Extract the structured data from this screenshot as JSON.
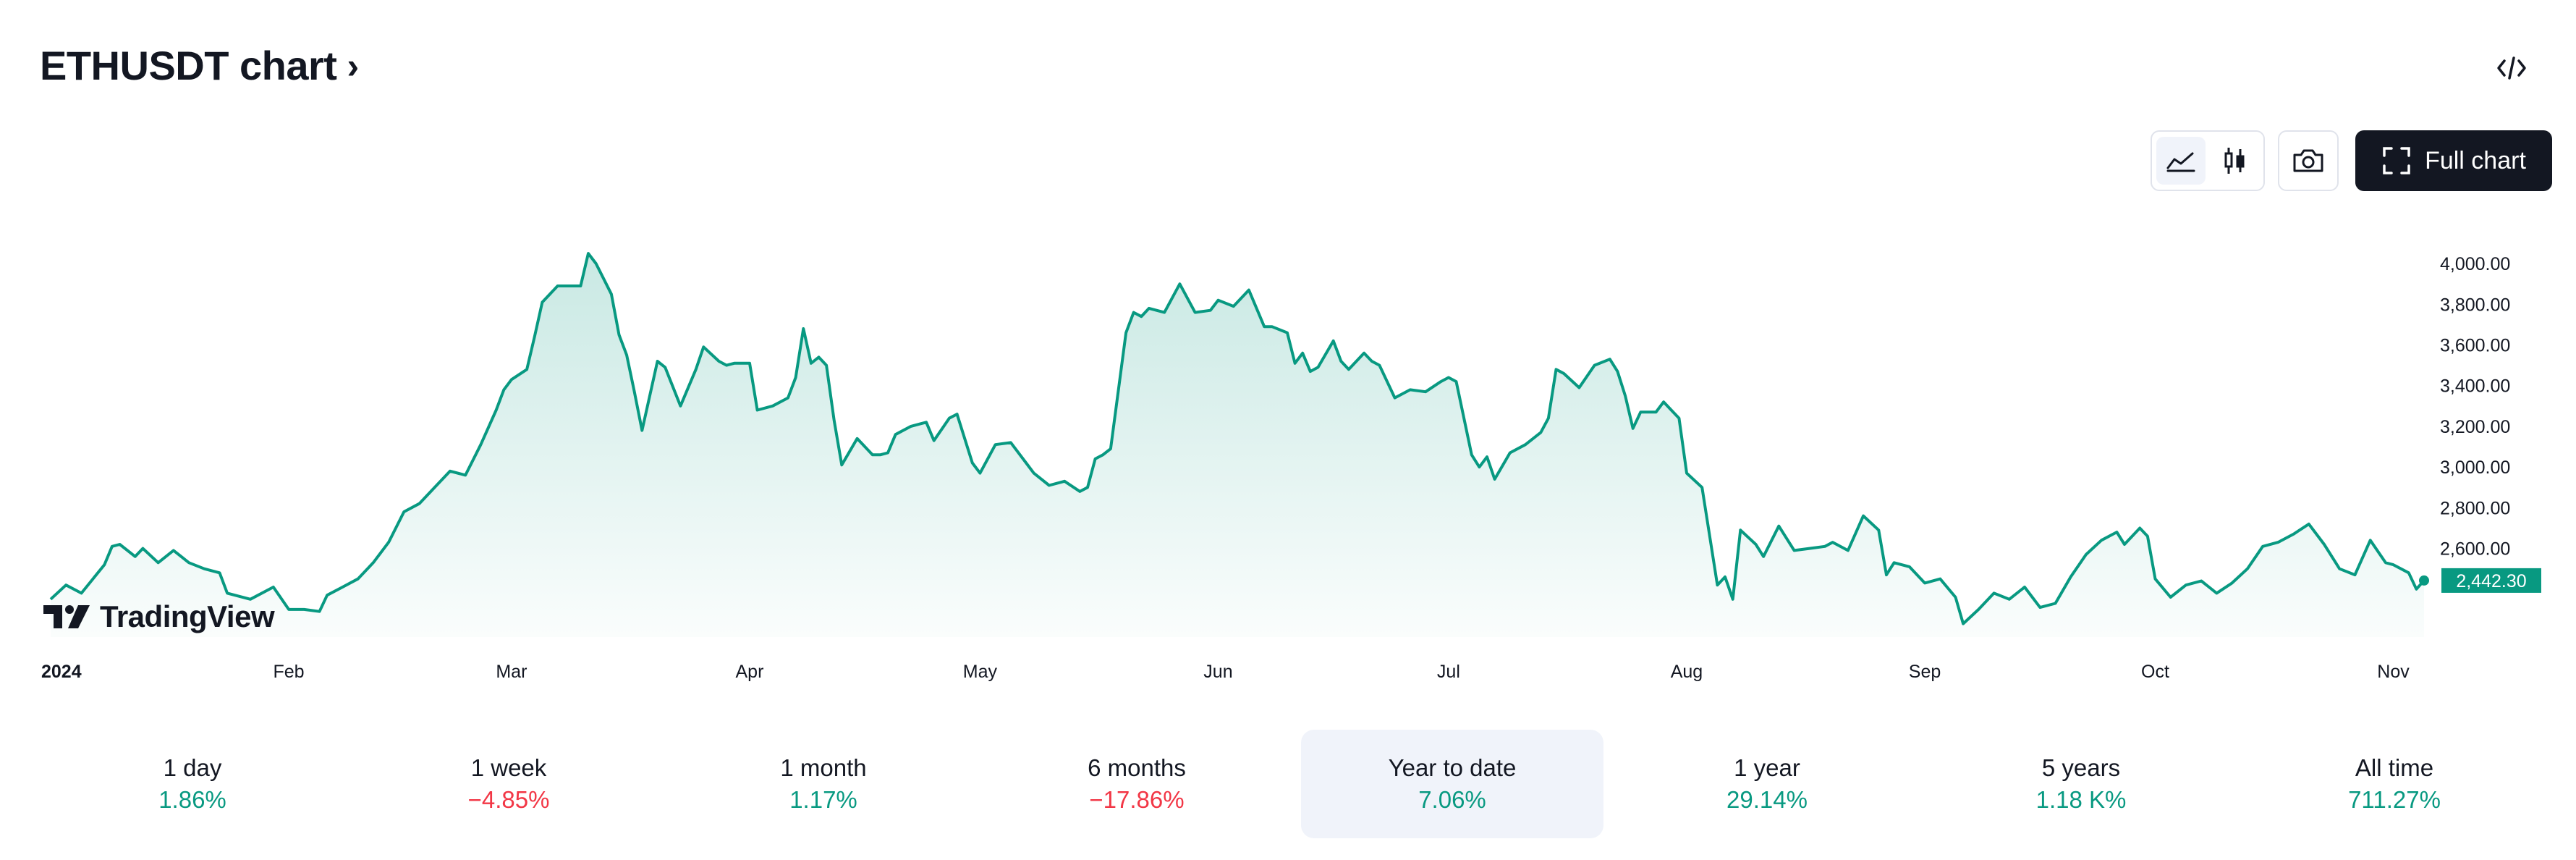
{
  "header": {
    "title": "ETHUSDT chart",
    "chevron": "›"
  },
  "toolbar": {
    "full_chart_label": "Full chart"
  },
  "icons": {
    "embed": "code-embed-icon",
    "area": "area-chart-icon",
    "candles": "candlestick-icon",
    "camera": "camera-icon",
    "fullscreen": "fullscreen-icon"
  },
  "colors": {
    "line": "#089981",
    "price_tag": "#089981",
    "positive": "#089981",
    "negative": "#f23645",
    "active_period_bg": "#f0f3fa"
  },
  "brand": {
    "logo_text": "TradingView"
  },
  "periods": [
    {
      "label": "1 day",
      "value": "1.86%",
      "sign": "pos",
      "active": false
    },
    {
      "label": "1 week",
      "value": "−4.85%",
      "sign": "neg",
      "active": false
    },
    {
      "label": "1 month",
      "value": "1.17%",
      "sign": "pos",
      "active": false
    },
    {
      "label": "6 months",
      "value": "−17.86%",
      "sign": "neg",
      "active": false
    },
    {
      "label": "Year to date",
      "value": "7.06%",
      "sign": "pos",
      "active": true
    },
    {
      "label": "1 year",
      "value": "29.14%",
      "sign": "pos",
      "active": false
    },
    {
      "label": "5 years",
      "value": "1.18 K%",
      "sign": "pos",
      "active": false
    },
    {
      "label": "All time",
      "value": "711.27%",
      "sign": "pos",
      "active": false
    }
  ],
  "chart_data": {
    "type": "area",
    "title": "ETHUSDT chart",
    "xlabel": "",
    "ylabel": "",
    "ylim": [
      2200,
      4100
    ],
    "y_ticks": [
      "2,600.00",
      "2,800.00",
      "3,000.00",
      "3,200.00",
      "3,400.00",
      "3,600.00",
      "3,800.00",
      "4,000.00"
    ],
    "x_ticks": [
      {
        "label": "2024",
        "bold": true,
        "date": "2024-01-01"
      },
      {
        "label": "Feb",
        "date": "2024-02-01"
      },
      {
        "label": "Mar",
        "date": "2024-03-01"
      },
      {
        "label": "Apr",
        "date": "2024-04-01"
      },
      {
        "label": "May",
        "date": "2024-05-01"
      },
      {
        "label": "Jun",
        "date": "2024-06-01"
      },
      {
        "label": "Jul",
        "date": "2024-07-01"
      },
      {
        "label": "Aug",
        "date": "2024-08-01"
      },
      {
        "label": "Sep",
        "date": "2024-09-01"
      },
      {
        "label": "Oct",
        "date": "2024-10-01"
      },
      {
        "label": "Nov",
        "date": "2024-11-01"
      }
    ],
    "last_price": "2,442.30",
    "series": [
      {
        "values": [
          [
            "2024-01-01",
            2350
          ],
          [
            "2024-01-03",
            2420
          ],
          [
            "2024-01-05",
            2380
          ],
          [
            "2024-01-08",
            2520
          ],
          [
            "2024-01-09",
            2610
          ],
          [
            "2024-01-10",
            2620
          ],
          [
            "2024-01-12",
            2560
          ],
          [
            "2024-01-13",
            2600
          ],
          [
            "2024-01-15",
            2530
          ],
          [
            "2024-01-17",
            2590
          ],
          [
            "2024-01-19",
            2530
          ],
          [
            "2024-01-21",
            2500
          ],
          [
            "2024-01-23",
            2480
          ],
          [
            "2024-01-24",
            2380
          ],
          [
            "2024-01-27",
            2350
          ],
          [
            "2024-01-30",
            2410
          ],
          [
            "2024-02-01",
            2300
          ],
          [
            "2024-02-03",
            2300
          ],
          [
            "2024-02-05",
            2290
          ],
          [
            "2024-02-06",
            2370
          ],
          [
            "2024-02-08",
            2410
          ],
          [
            "2024-02-10",
            2450
          ],
          [
            "2024-02-12",
            2530
          ],
          [
            "2024-02-14",
            2630
          ],
          [
            "2024-02-16",
            2780
          ],
          [
            "2024-02-18",
            2820
          ],
          [
            "2024-02-20",
            2900
          ],
          [
            "2024-02-22",
            2980
          ],
          [
            "2024-02-24",
            2960
          ],
          [
            "2024-02-26",
            3110
          ],
          [
            "2024-02-28",
            3280
          ],
          [
            "2024-02-29",
            3380
          ],
          [
            "2024-03-01",
            3430
          ],
          [
            "2024-03-03",
            3480
          ],
          [
            "2024-03-04",
            3640
          ],
          [
            "2024-03-05",
            3810
          ],
          [
            "2024-03-07",
            3890
          ],
          [
            "2024-03-08",
            3890
          ],
          [
            "2024-03-10",
            3890
          ],
          [
            "2024-03-11",
            4050
          ],
          [
            "2024-03-12",
            4000
          ],
          [
            "2024-03-14",
            3850
          ],
          [
            "2024-03-15",
            3650
          ],
          [
            "2024-03-16",
            3550
          ],
          [
            "2024-03-17",
            3370
          ],
          [
            "2024-03-18",
            3180
          ],
          [
            "2024-03-20",
            3520
          ],
          [
            "2024-03-21",
            3490
          ],
          [
            "2024-03-23",
            3300
          ],
          [
            "2024-03-25",
            3480
          ],
          [
            "2024-03-26",
            3590
          ],
          [
            "2024-03-28",
            3520
          ],
          [
            "2024-03-29",
            3500
          ],
          [
            "2024-03-30",
            3510
          ],
          [
            "2024-04-01",
            3510
          ],
          [
            "2024-04-02",
            3280
          ],
          [
            "2024-04-04",
            3300
          ],
          [
            "2024-04-06",
            3340
          ],
          [
            "2024-04-07",
            3440
          ],
          [
            "2024-04-08",
            3680
          ],
          [
            "2024-04-09",
            3510
          ],
          [
            "2024-04-10",
            3540
          ],
          [
            "2024-04-11",
            3500
          ],
          [
            "2024-04-12",
            3230
          ],
          [
            "2024-04-13",
            3010
          ],
          [
            "2024-04-15",
            3140
          ],
          [
            "2024-04-17",
            3060
          ],
          [
            "2024-04-18",
            3060
          ],
          [
            "2024-04-19",
            3070
          ],
          [
            "2024-04-20",
            3160
          ],
          [
            "2024-04-22",
            3200
          ],
          [
            "2024-04-24",
            3220
          ],
          [
            "2024-04-25",
            3130
          ],
          [
            "2024-04-27",
            3240
          ],
          [
            "2024-04-28",
            3260
          ],
          [
            "2024-04-30",
            3020
          ],
          [
            "2024-05-01",
            2970
          ],
          [
            "2024-05-03",
            3110
          ],
          [
            "2024-05-05",
            3120
          ],
          [
            "2024-05-07",
            3020
          ],
          [
            "2024-05-08",
            2970
          ],
          [
            "2024-05-10",
            2910
          ],
          [
            "2024-05-12",
            2930
          ],
          [
            "2024-05-14",
            2880
          ],
          [
            "2024-05-15",
            2900
          ],
          [
            "2024-05-16",
            3040
          ],
          [
            "2024-05-17",
            3060
          ],
          [
            "2024-05-18",
            3090
          ],
          [
            "2024-05-20",
            3660
          ],
          [
            "2024-05-21",
            3760
          ],
          [
            "2024-05-22",
            3740
          ],
          [
            "2024-05-23",
            3780
          ],
          [
            "2024-05-25",
            3760
          ],
          [
            "2024-05-27",
            3900
          ],
          [
            "2024-05-29",
            3760
          ],
          [
            "2024-05-31",
            3770
          ],
          [
            "2024-06-01",
            3820
          ],
          [
            "2024-06-03",
            3790
          ],
          [
            "2024-06-05",
            3870
          ],
          [
            "2024-06-07",
            3690
          ],
          [
            "2024-06-08",
            3690
          ],
          [
            "2024-06-10",
            3660
          ],
          [
            "2024-06-11",
            3510
          ],
          [
            "2024-06-12",
            3560
          ],
          [
            "2024-06-13",
            3470
          ],
          [
            "2024-06-14",
            3490
          ],
          [
            "2024-06-16",
            3620
          ],
          [
            "2024-06-17",
            3520
          ],
          [
            "2024-06-18",
            3480
          ],
          [
            "2024-06-20",
            3560
          ],
          [
            "2024-06-21",
            3520
          ],
          [
            "2024-06-22",
            3500
          ],
          [
            "2024-06-24",
            3340
          ],
          [
            "2024-06-26",
            3380
          ],
          [
            "2024-06-28",
            3370
          ],
          [
            "2024-06-30",
            3420
          ],
          [
            "2024-07-01",
            3440
          ],
          [
            "2024-07-02",
            3420
          ],
          [
            "2024-07-04",
            3060
          ],
          [
            "2024-07-05",
            3000
          ],
          [
            "2024-07-06",
            3050
          ],
          [
            "2024-07-07",
            2940
          ],
          [
            "2024-07-09",
            3070
          ],
          [
            "2024-07-11",
            3110
          ],
          [
            "2024-07-13",
            3170
          ],
          [
            "2024-07-14",
            3240
          ],
          [
            "2024-07-15",
            3480
          ],
          [
            "2024-07-16",
            3460
          ],
          [
            "2024-07-18",
            3390
          ],
          [
            "2024-07-20",
            3500
          ],
          [
            "2024-07-22",
            3530
          ],
          [
            "2024-07-23",
            3470
          ],
          [
            "2024-07-24",
            3350
          ],
          [
            "2024-07-25",
            3190
          ],
          [
            "2024-07-26",
            3270
          ],
          [
            "2024-07-28",
            3270
          ],
          [
            "2024-07-29",
            3320
          ],
          [
            "2024-07-30",
            3280
          ],
          [
            "2024-07-31",
            3240
          ],
          [
            "2024-08-01",
            2970
          ],
          [
            "2024-08-03",
            2900
          ],
          [
            "2024-08-05",
            2420
          ],
          [
            "2024-08-06",
            2460
          ],
          [
            "2024-08-07",
            2350
          ],
          [
            "2024-08-08",
            2690
          ],
          [
            "2024-08-10",
            2620
          ],
          [
            "2024-08-11",
            2560
          ],
          [
            "2024-08-13",
            2710
          ],
          [
            "2024-08-15",
            2590
          ],
          [
            "2024-08-17",
            2600
          ],
          [
            "2024-08-19",
            2610
          ],
          [
            "2024-08-20",
            2630
          ],
          [
            "2024-08-22",
            2590
          ],
          [
            "2024-08-24",
            2760
          ],
          [
            "2024-08-26",
            2690
          ],
          [
            "2024-08-27",
            2470
          ],
          [
            "2024-08-28",
            2530
          ],
          [
            "2024-08-30",
            2510
          ],
          [
            "2024-09-01",
            2430
          ],
          [
            "2024-09-03",
            2450
          ],
          [
            "2024-09-05",
            2360
          ],
          [
            "2024-09-06",
            2230
          ],
          [
            "2024-09-08",
            2300
          ],
          [
            "2024-09-10",
            2380
          ],
          [
            "2024-09-12",
            2350
          ],
          [
            "2024-09-14",
            2410
          ],
          [
            "2024-09-16",
            2310
          ],
          [
            "2024-09-18",
            2330
          ],
          [
            "2024-09-20",
            2460
          ],
          [
            "2024-09-22",
            2570
          ],
          [
            "2024-09-24",
            2640
          ],
          [
            "2024-09-26",
            2680
          ],
          [
            "2024-09-27",
            2620
          ],
          [
            "2024-09-29",
            2700
          ],
          [
            "2024-09-30",
            2660
          ],
          [
            "2024-10-01",
            2450
          ],
          [
            "2024-10-03",
            2360
          ],
          [
            "2024-10-05",
            2420
          ],
          [
            "2024-10-07",
            2440
          ],
          [
            "2024-10-09",
            2380
          ],
          [
            "2024-10-11",
            2430
          ],
          [
            "2024-10-13",
            2500
          ],
          [
            "2024-10-15",
            2610
          ],
          [
            "2024-10-17",
            2630
          ],
          [
            "2024-10-19",
            2670
          ],
          [
            "2024-10-21",
            2720
          ],
          [
            "2024-10-23",
            2620
          ],
          [
            "2024-10-25",
            2500
          ],
          [
            "2024-10-27",
            2470
          ],
          [
            "2024-10-29",
            2640
          ],
          [
            "2024-10-31",
            2530
          ],
          [
            "2024-11-01",
            2520
          ],
          [
            "2024-11-03",
            2480
          ],
          [
            "2024-11-04",
            2400
          ],
          [
            "2024-11-05",
            2442.3
          ]
        ]
      }
    ]
  }
}
